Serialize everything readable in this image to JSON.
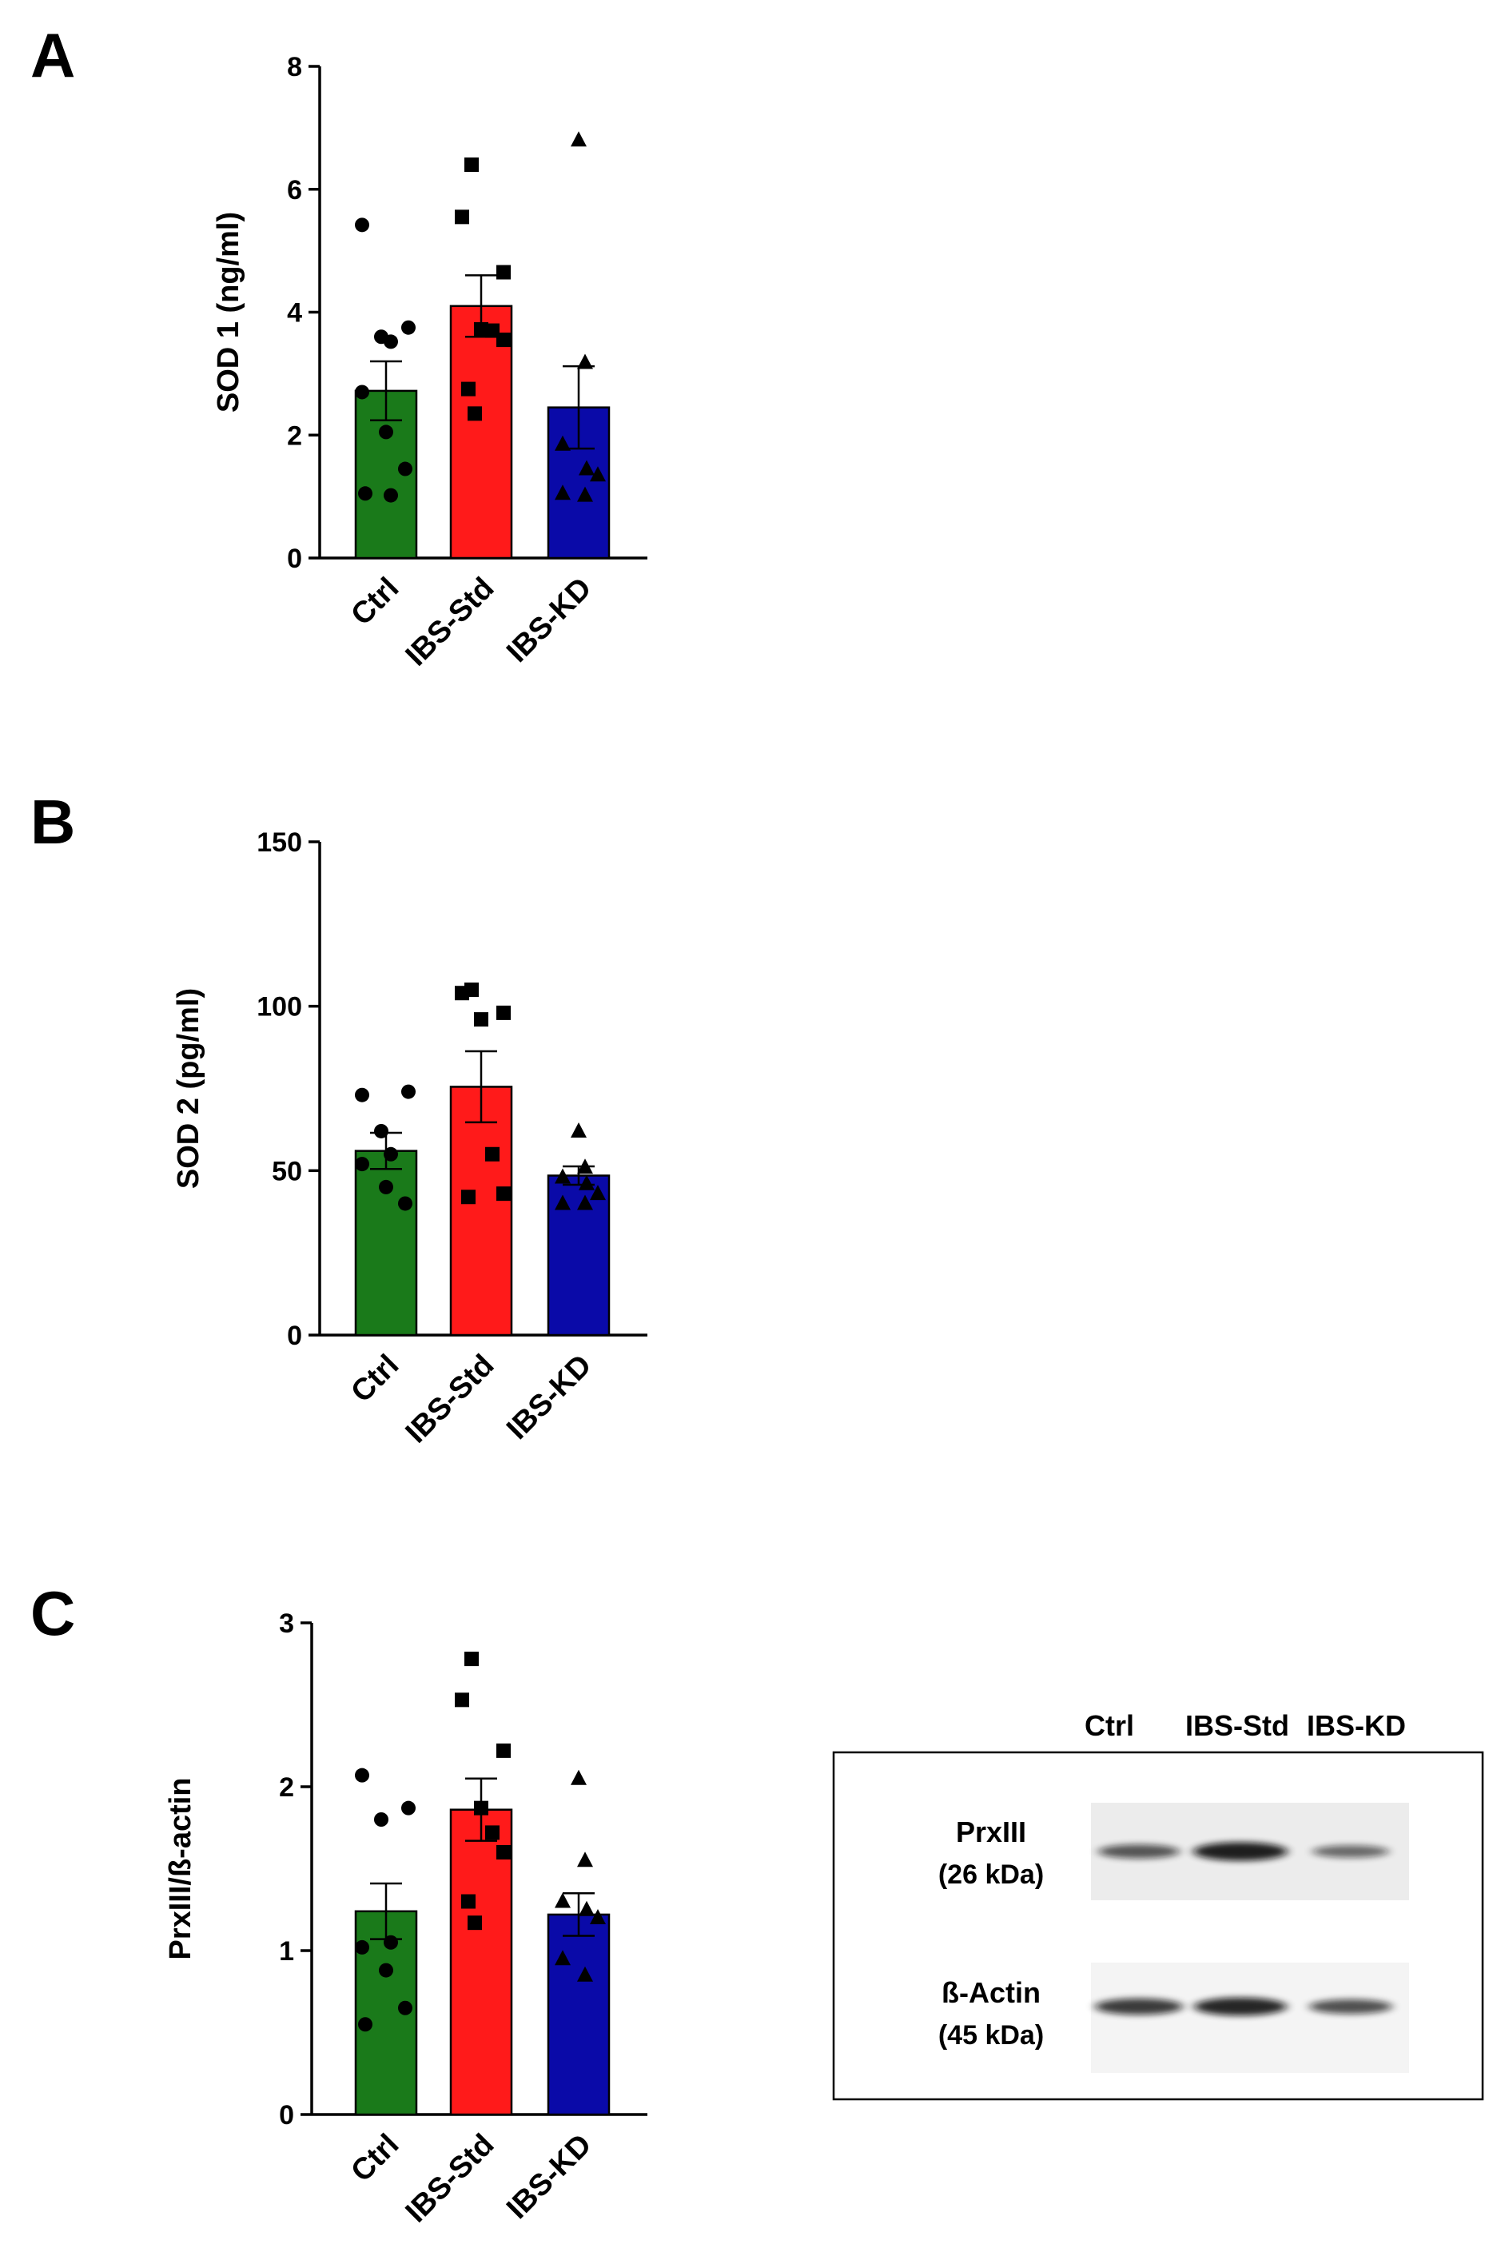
{
  "chart_data": [
    {
      "panel": "A",
      "type": "bar",
      "categories": [
        "Ctrl",
        "IBS-Std",
        "IBS-KD"
      ],
      "values": [
        2.72,
        4.1,
        2.45
      ],
      "sem": [
        0.48,
        0.5,
        0.67
      ],
      "points": [
        [
          5.42,
          3.75,
          3.6,
          3.52,
          2.7,
          2.05,
          1.45,
          1.05,
          1.02
        ],
        [
          6.4,
          5.55,
          4.65,
          3.72,
          3.7,
          3.55,
          2.75,
          2.35
        ],
        [
          6.8,
          3.18,
          1.85,
          1.45,
          1.35,
          1.05,
          1.02
        ]
      ],
      "markers": [
        "circle",
        "square",
        "triangle"
      ],
      "colors": [
        "#1a7a1a",
        "#ff1a1a",
        "#0a0aa8"
      ],
      "ylabel": "SOD 1 (ng/ml)",
      "ylim": [
        0,
        8
      ],
      "yticks": [
        "0",
        "2",
        "4",
        "6",
        "8"
      ]
    },
    {
      "panel": "B",
      "type": "bar",
      "categories": [
        "Ctrl",
        "IBS-Std",
        "IBS-KD"
      ],
      "values": [
        56,
        75.5,
        48.5
      ],
      "sem": [
        5.5,
        10.8,
        2.8
      ],
      "points": [
        [
          73,
          74,
          62,
          55,
          52,
          45,
          40
        ],
        [
          105,
          104,
          98,
          96,
          55,
          43,
          42
        ],
        [
          62,
          51,
          48,
          46,
          43,
          40,
          40
        ]
      ],
      "markers": [
        "circle",
        "square",
        "triangle"
      ],
      "colors": [
        "#1a7a1a",
        "#ff1a1a",
        "#0a0aa8"
      ],
      "ylabel": "SOD 2 (pg/ml)",
      "ylim": [
        0,
        150
      ],
      "yticks": [
        "0",
        "50",
        "100",
        "150"
      ]
    },
    {
      "panel": "C",
      "type": "bar",
      "categories": [
        "Ctrl",
        "IBS-Std",
        "IBS-KD"
      ],
      "values": [
        1.24,
        1.86,
        1.22
      ],
      "sem": [
        0.17,
        0.19,
        0.13
      ],
      "points": [
        [
          2.07,
          1.87,
          1.8,
          1.05,
          1.02,
          0.88,
          0.65,
          0.55
        ],
        [
          2.78,
          2.53,
          2.22,
          1.87,
          1.72,
          1.6,
          1.3,
          1.17
        ],
        [
          2.05,
          1.55,
          1.3,
          1.25,
          1.2,
          0.95,
          0.85
        ]
      ],
      "markers": [
        "circle",
        "square",
        "triangle"
      ],
      "colors": [
        "#1a7a1a",
        "#ff1a1a",
        "#0a0aa8"
      ],
      "ylabel": "PrxIII/ß-actin",
      "ylim": [
        0,
        3
      ],
      "yticks": [
        "0",
        "1",
        "2",
        "3"
      ]
    }
  ],
  "blot": {
    "lanes": [
      "Ctrl",
      "IBS-Std",
      "IBS-KD"
    ],
    "rows": [
      {
        "name": "PrxIII",
        "size": "(26 kDa)",
        "intensities": [
          0.55,
          0.95,
          0.4
        ]
      },
      {
        "name": "ß-Actin",
        "size": "(45 kDa)",
        "intensities": [
          0.75,
          0.9,
          0.6
        ]
      }
    ]
  }
}
